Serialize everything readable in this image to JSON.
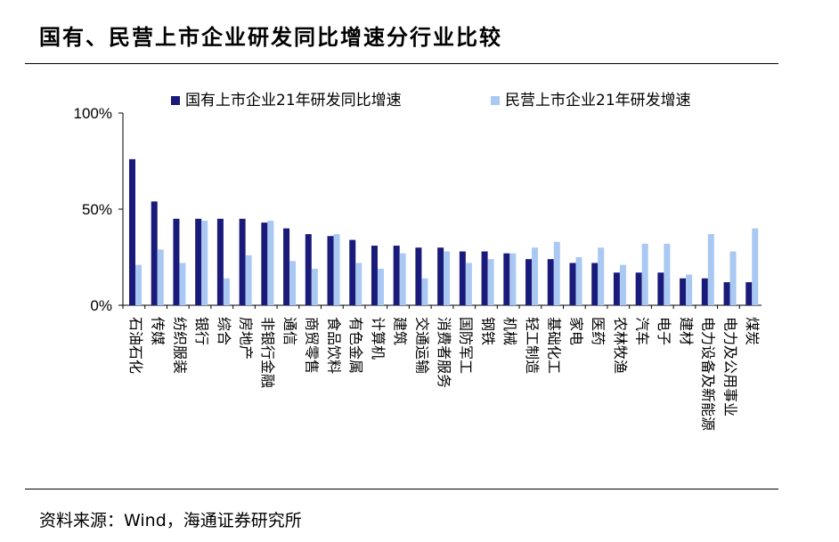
{
  "title": "国有、民营上市企业研发同比增速分行业比较",
  "source": "资料来源：Wind，海通证券研究所",
  "colors": {
    "series_state": "#1a1a7a",
    "series_private": "#a9c8f2",
    "axis": "#000000"
  },
  "chart_data": {
    "type": "bar",
    "categories": [
      "石油石化",
      "传媒",
      "纺织服装",
      "银行",
      "综合",
      "房地产",
      "非银行金融",
      "通信",
      "商贸零售",
      "食品饮料",
      "有色金属",
      "计算机",
      "建筑",
      "交通运输",
      "消费者服务",
      "国防军工",
      "钢铁",
      "机械",
      "轻工制造",
      "基础化工",
      "家电",
      "医药",
      "农林牧渔",
      "汽车",
      "电子",
      "建材",
      "电力设备及新能源",
      "电力及公用事业",
      "煤炭"
    ],
    "series": [
      {
        "name": "国有上市企业21年研发同比增速",
        "values": [
          0.76,
          0.54,
          0.45,
          0.45,
          0.45,
          0.45,
          0.43,
          0.4,
          0.37,
          0.36,
          0.34,
          0.31,
          0.31,
          0.3,
          0.3,
          0.28,
          0.28,
          0.27,
          0.24,
          0.24,
          0.22,
          0.22,
          0.17,
          0.17,
          0.17,
          0.14,
          0.14,
          0.12,
          0.12
        ]
      },
      {
        "name": "民营上市企业21年研发增速",
        "values": [
          0.21,
          0.29,
          0.22,
          0.44,
          0.14,
          0.26,
          0.44,
          0.23,
          0.19,
          0.37,
          0.22,
          0.19,
          0.27,
          0.14,
          0.28,
          0.22,
          0.24,
          0.27,
          0.3,
          0.33,
          0.25,
          0.3,
          0.21,
          0.32,
          0.32,
          0.16,
          0.37,
          0.28,
          0.4
        ]
      }
    ],
    "yticks": [
      "0%",
      "50%",
      "100%"
    ],
    "ylim": [
      0,
      1.0
    ],
    "legend_position": "top",
    "grid": false
  }
}
